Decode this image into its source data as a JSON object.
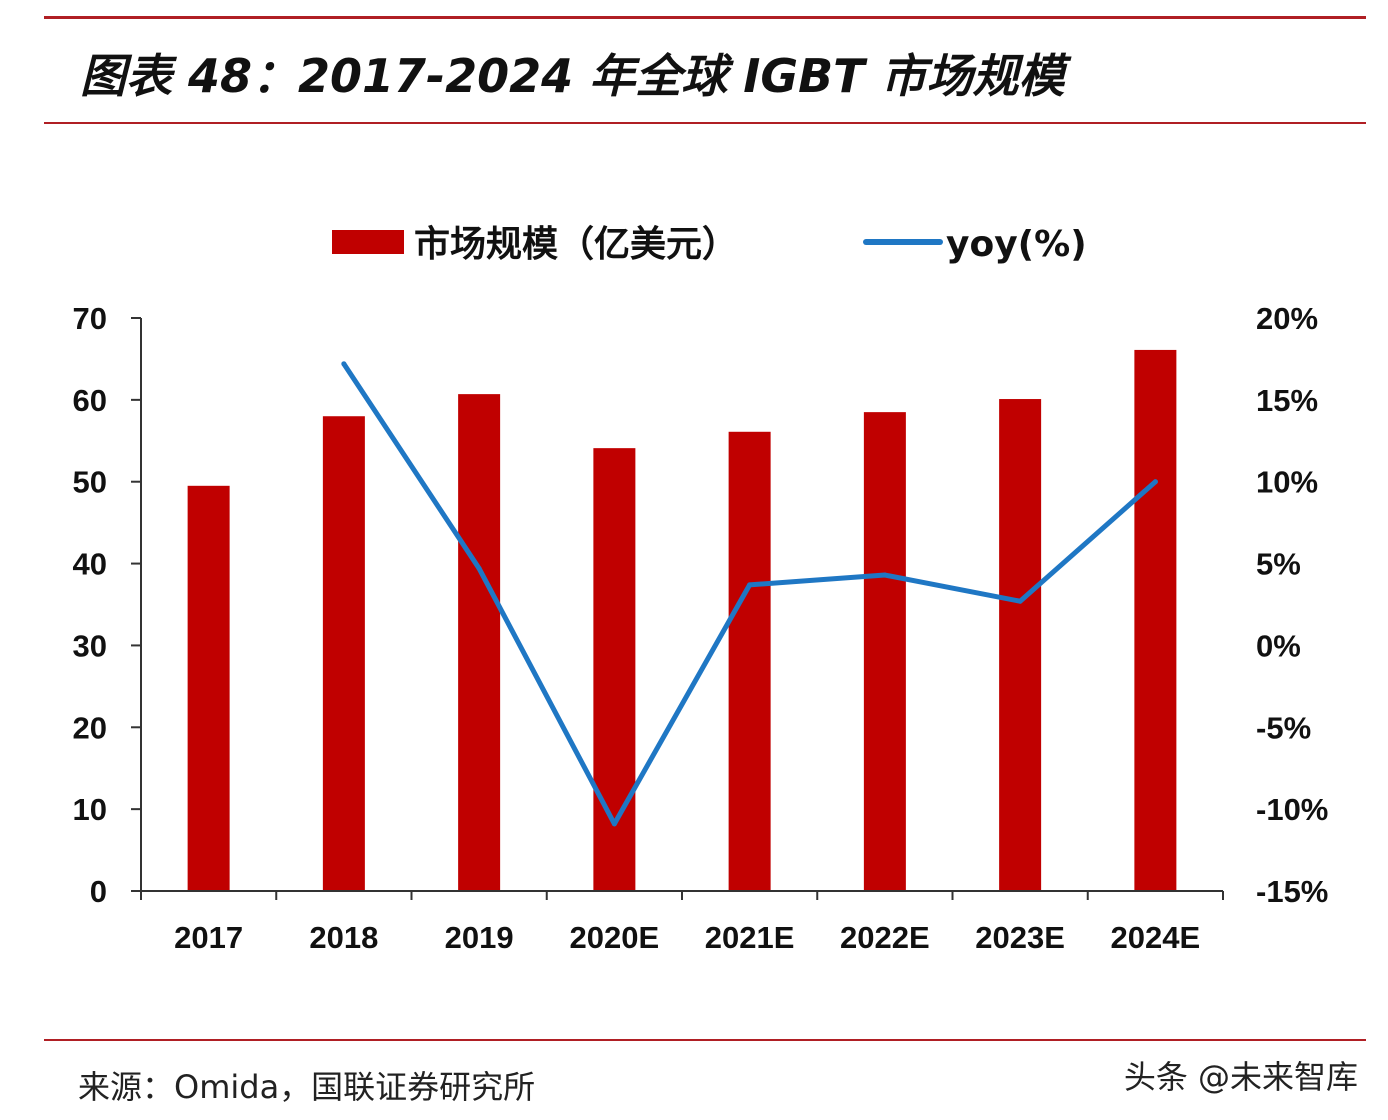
{
  "title": "图表 48：2017-2024 年全球 IGBT 市场规模",
  "source": "来源：Omida，国联证券研究所",
  "watermark": "头条 @未来智库",
  "colors": {
    "bar": "#c00000",
    "line": "#1f77c4",
    "rule": "#b01f24"
  },
  "chart_data": {
    "type": "bar",
    "categories": [
      "2017",
      "2018",
      "2019",
      "2020E",
      "2021E",
      "2022E",
      "2023E",
      "2024E"
    ],
    "series": [
      {
        "name": "市场规模（亿美元）",
        "type": "bar",
        "axis": "left",
        "values": [
          49.5,
          58.0,
          60.7,
          54.1,
          56.1,
          58.5,
          60.1,
          66.1
        ]
      },
      {
        "name": "yoy(%)",
        "type": "line",
        "axis": "right",
        "values": [
          null,
          17.2,
          4.7,
          -10.9,
          3.7,
          4.3,
          2.7,
          10.0
        ]
      }
    ],
    "y_left": {
      "range": [
        0,
        70
      ],
      "ticks": [
        0,
        10,
        20,
        30,
        40,
        50,
        60,
        70
      ]
    },
    "y_right": {
      "range": [
        -15,
        20
      ],
      "ticks": [
        "-15%",
        "-10%",
        "-5%",
        "0%",
        "5%",
        "10%",
        "15%",
        "20%"
      ]
    },
    "legend_position": "top-center",
    "grid": false
  }
}
